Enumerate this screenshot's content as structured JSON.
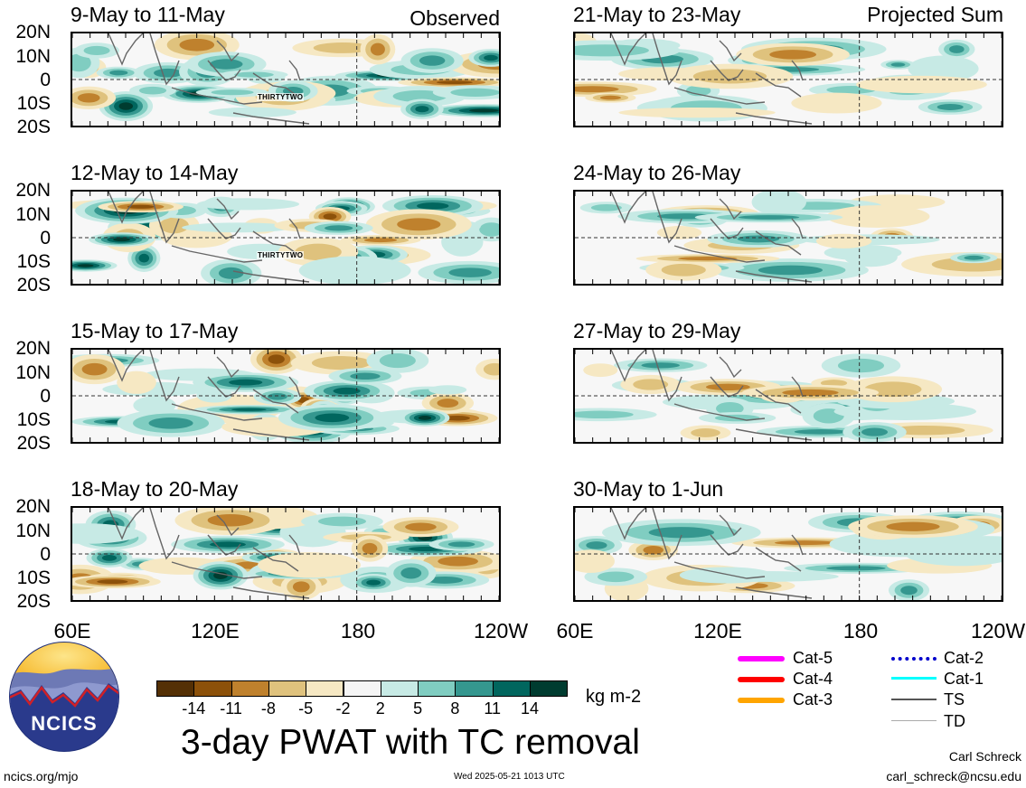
{
  "header": {
    "observed_label": "Observed",
    "projected_label": "Projected Sum"
  },
  "panels": [
    {
      "title": "9-May to 11-May",
      "tc_label": "THIRTYTWO"
    },
    {
      "title": "12-May to 14-May",
      "tc_label": "THIRTYTWO"
    },
    {
      "title": "15-May to 17-May",
      "tc_label": ""
    },
    {
      "title": "18-May to 20-May",
      "tc_label": ""
    },
    {
      "title": "21-May to 23-May",
      "tc_label": ""
    },
    {
      "title": "24-May to 26-May",
      "tc_label": ""
    },
    {
      "title": "27-May to 29-May",
      "tc_label": ""
    },
    {
      "title": "30-May to 1-Jun",
      "tc_label": ""
    }
  ],
  "lat_labels": [
    "20N",
    "10N",
    "0",
    "10S",
    "20S"
  ],
  "lon_labels": [
    "60E",
    "120E",
    "180",
    "120W"
  ],
  "colorbar": {
    "colors": [
      "#543005",
      "#8c510a",
      "#bf812d",
      "#dfc27d",
      "#f6e8c3",
      "#f5f5f5",
      "#c7eae5",
      "#80cdc1",
      "#35978f",
      "#01665e",
      "#003c30"
    ],
    "ticks": [
      "-14",
      "-11",
      "-8",
      "-5",
      "-2",
      "2",
      "5",
      "8",
      "11",
      "14"
    ],
    "units": "kg m-2"
  },
  "main_title": "3-day PWAT with TC removal",
  "legend": [
    {
      "label": "Cat-5",
      "color": "#ff00ff",
      "style": "solid"
    },
    {
      "label": "Cat-4",
      "color": "#ff0000",
      "style": "solid"
    },
    {
      "label": "Cat-3",
      "color": "#ffa500",
      "style": "solid"
    },
    {
      "label": "Cat-2",
      "color": "#0000cc",
      "style": "dotted"
    },
    {
      "label": "Cat-1",
      "color": "#00ffff",
      "style": "solid"
    },
    {
      "label": "TS",
      "color": "#555555",
      "style": "thin"
    },
    {
      "label": "TD",
      "color": "#aaaaaa",
      "style": "thin"
    }
  ],
  "logo_text": "NCICS",
  "footer": {
    "url": "ncics.org/mjo",
    "timestamp": "Wed 2025-05-21 1013 UTC",
    "author": "Carl Schreck",
    "email": "carl_schreck@ncsu.edu"
  }
}
